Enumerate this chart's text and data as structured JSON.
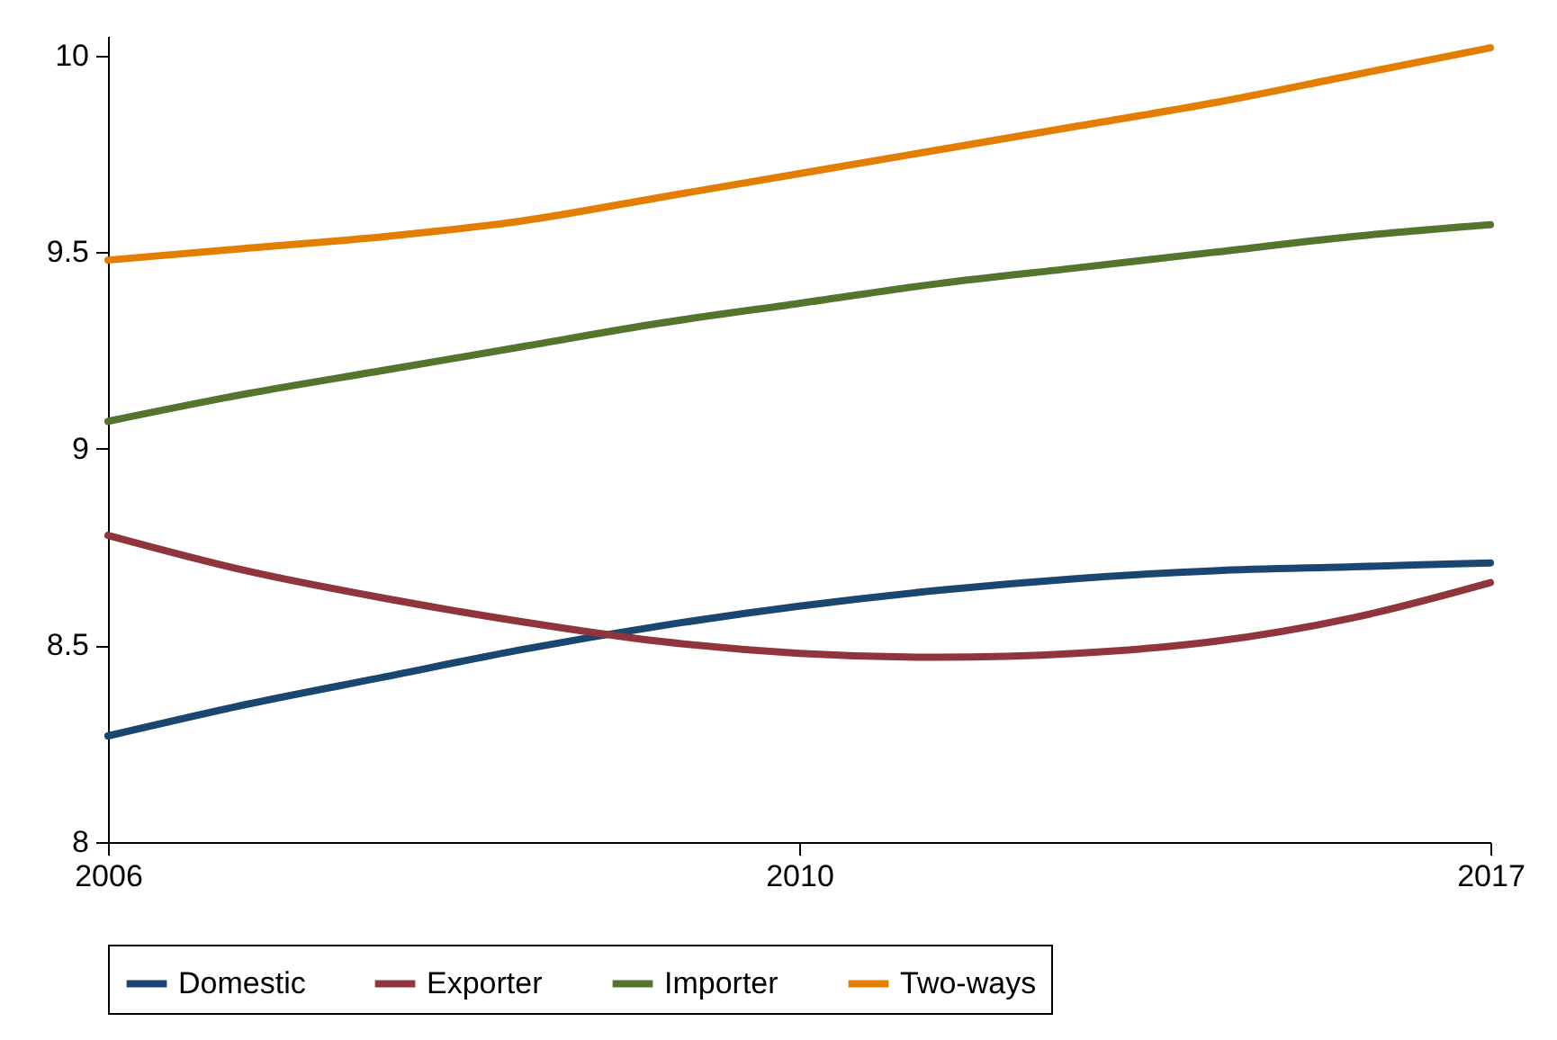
{
  "chart_data": {
    "type": "line",
    "categories": [
      "2006",
      null,
      null,
      null,
      null,
      "2010",
      null,
      null,
      null,
      null,
      "2017"
    ],
    "series": [
      {
        "name": "Domestic",
        "color": "#1a476f",
        "values": [
          8.27,
          8.35,
          8.42,
          8.49,
          8.55,
          8.6,
          8.64,
          8.67,
          8.69,
          8.7,
          8.71
        ]
      },
      {
        "name": "Exporter",
        "color": "#90353b",
        "values": [
          8.78,
          8.69,
          8.62,
          8.56,
          8.51,
          8.48,
          8.47,
          8.48,
          8.51,
          8.57,
          8.66
        ]
      },
      {
        "name": "Importer",
        "color": "#55752f",
        "values": [
          9.07,
          9.14,
          9.2,
          9.26,
          9.32,
          9.37,
          9.42,
          9.46,
          9.5,
          9.54,
          9.57
        ]
      },
      {
        "name": "Two-ways",
        "color": "#e37e00",
        "values": [
          9.48,
          9.51,
          9.54,
          9.58,
          9.64,
          9.7,
          9.76,
          9.82,
          9.88,
          9.95,
          10.02
        ]
      }
    ],
    "ylim": [
      8,
      10.05
    ],
    "yticks": [
      8,
      8.5,
      9,
      9.5,
      10
    ],
    "legend": "bottom",
    "grid": false,
    "marker": "none",
    "line_style": "solid"
  }
}
